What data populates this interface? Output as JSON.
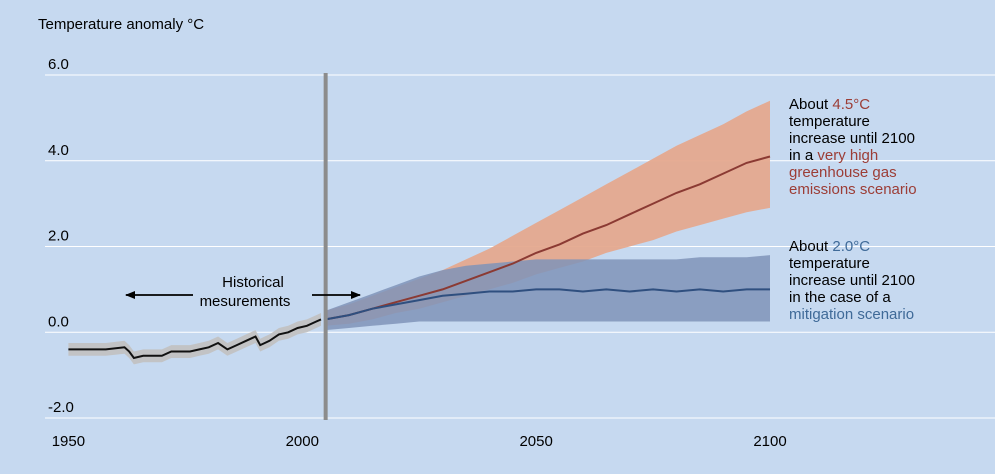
{
  "chart_data": {
    "type": "line",
    "ylabel": "Temperature anomaly °C",
    "xlim": [
      1945,
      2100
    ],
    "ylim": [
      -2.0,
      6.0
    ],
    "x_ticks": [
      1950,
      2000,
      2050,
      2100
    ],
    "y_ticks": [
      6.0,
      4.0,
      2.0,
      0.0,
      -2.0
    ],
    "x_tick_labels": [
      "1950",
      "2000",
      "2050",
      "2100"
    ],
    "y_tick_labels": [
      "6.0",
      "4.0",
      "2.0",
      "0.0",
      "-2.0"
    ],
    "grid": "horizontal",
    "divider_year": 2005,
    "historical_label": [
      "Historical",
      "mesurements"
    ],
    "series": [
      {
        "key": "historical",
        "color": "#111111",
        "band_color": "#c2c2c2",
        "x": [
          1950,
          1955,
          1958,
          1962,
          1963,
          1964,
          1966,
          1968,
          1970,
          1972,
          1974,
          1976,
          1978,
          1980,
          1982,
          1984,
          1986,
          1988,
          1990,
          1991,
          1992,
          1993,
          1995,
          1997,
          1999,
          2001,
          2003,
          2004
        ],
        "values": [
          -0.4,
          -0.4,
          -0.4,
          -0.35,
          -0.45,
          -0.6,
          -0.55,
          -0.55,
          -0.55,
          -0.45,
          -0.45,
          -0.45,
          -0.4,
          -0.35,
          -0.25,
          -0.4,
          -0.3,
          -0.2,
          -0.1,
          -0.3,
          -0.25,
          -0.2,
          -0.05,
          0.0,
          0.1,
          0.15,
          0.25,
          0.3
        ],
        "band_half_width": 0.15
      },
      {
        "key": "high_emissions",
        "color": "#8b3a33",
        "band_color": "#e5a98e",
        "x": [
          2005,
          2010,
          2015,
          2020,
          2025,
          2030,
          2035,
          2040,
          2045,
          2050,
          2055,
          2060,
          2065,
          2070,
          2075,
          2080,
          2085,
          2090,
          2095,
          2100
        ],
        "values": [
          0.3,
          0.4,
          0.55,
          0.7,
          0.85,
          1.0,
          1.2,
          1.4,
          1.6,
          1.85,
          2.05,
          2.3,
          2.5,
          2.75,
          3.0,
          3.25,
          3.45,
          3.7,
          3.95,
          4.1
        ],
        "band_low": [
          0.15,
          0.2,
          0.3,
          0.45,
          0.55,
          0.7,
          0.85,
          1.0,
          1.15,
          1.35,
          1.5,
          1.65,
          1.85,
          2.0,
          2.15,
          2.35,
          2.5,
          2.65,
          2.8,
          2.9
        ],
        "band_high": [
          0.5,
          0.65,
          0.85,
          1.05,
          1.25,
          1.45,
          1.7,
          1.95,
          2.25,
          2.55,
          2.85,
          3.15,
          3.45,
          3.75,
          4.05,
          4.35,
          4.6,
          4.85,
          5.15,
          5.4
        ]
      },
      {
        "key": "mitigation",
        "color": "#2f4f7f",
        "band_color": "#7f93b8",
        "x": [
          2005,
          2010,
          2015,
          2020,
          2025,
          2030,
          2035,
          2040,
          2045,
          2050,
          2055,
          2060,
          2065,
          2070,
          2075,
          2080,
          2085,
          2090,
          2095,
          2100
        ],
        "values": [
          0.3,
          0.4,
          0.55,
          0.65,
          0.75,
          0.85,
          0.9,
          0.95,
          0.95,
          1.0,
          1.0,
          0.95,
          1.0,
          0.95,
          1.0,
          0.95,
          1.0,
          0.95,
          1.0,
          1.0
        ],
        "band_low": [
          0.05,
          0.1,
          0.15,
          0.2,
          0.25,
          0.25,
          0.25,
          0.25,
          0.25,
          0.25,
          0.25,
          0.25,
          0.25,
          0.25,
          0.25,
          0.25,
          0.25,
          0.25,
          0.25,
          0.25
        ],
        "band_high": [
          0.5,
          0.7,
          0.9,
          1.1,
          1.3,
          1.45,
          1.55,
          1.6,
          1.65,
          1.7,
          1.7,
          1.7,
          1.7,
          1.7,
          1.7,
          1.7,
          1.75,
          1.75,
          1.75,
          1.8
        ]
      }
    ],
    "annotations": {
      "high": {
        "prefix": "About ",
        "value": "4.5°C",
        "middle_lines": [
          "temperature",
          "increase until 2100",
          "in a "
        ],
        "scenario_lines": [
          "very high",
          "greenhouse gas",
          "emissions scenario"
        ]
      },
      "low": {
        "prefix": "About ",
        "value": "2.0°C",
        "middle_lines": [
          "temperature",
          "increase until 2100",
          "in the case of a"
        ],
        "scenario_lines": [
          "mitigation scenario"
        ]
      }
    },
    "colors": {
      "background": "#c6d9f0",
      "gridline": "#ffffff",
      "divider": "#8c8c8c",
      "annotation_red": "#9c3d36",
      "annotation_blue": "#3f6a98"
    }
  }
}
